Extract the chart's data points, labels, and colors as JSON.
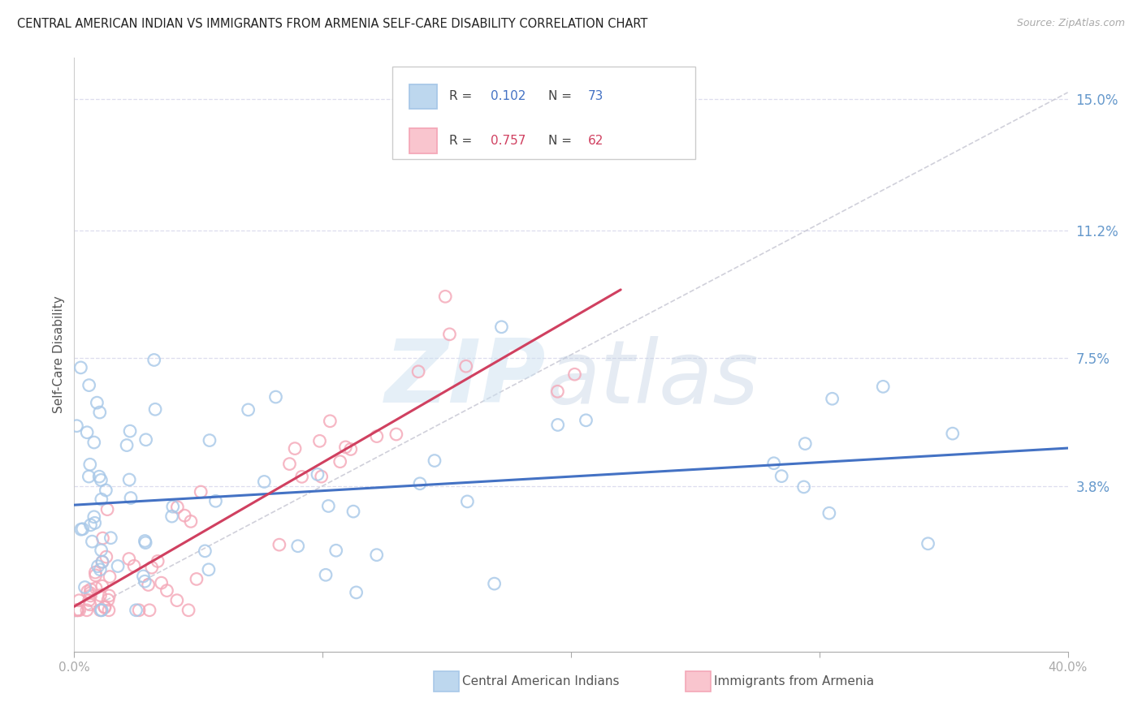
{
  "title": "CENTRAL AMERICAN INDIAN VS IMMIGRANTS FROM ARMENIA SELF-CARE DISABILITY CORRELATION CHART",
  "source": "Source: ZipAtlas.com",
  "ylabel": "Self-Care Disability",
  "color_blue": "#A8C8E8",
  "color_pink": "#F4A8B8",
  "color_blue_line": "#4472C4",
  "color_pink_line": "#D04060",
  "color_diag_line": "#C8C8D4",
  "color_ytick": "#6699CC",
  "color_grid": "#DDDDEE",
  "r_blue": 0.102,
  "n_blue": 73,
  "r_pink": 0.757,
  "n_pink": 62,
  "xlim": [
    0.0,
    0.4
  ],
  "ylim": [
    -0.01,
    0.162
  ],
  "yticks": [
    0.038,
    0.075,
    0.112,
    0.15
  ],
  "ytick_labels": [
    "3.8%",
    "7.5%",
    "11.2%",
    "15.0%"
  ],
  "legend_label1": "Central American Indians",
  "legend_label2": "Immigrants from Armenia",
  "blue_intercept": 0.03,
  "blue_slope": 0.018,
  "pink_intercept": 0.005,
  "pink_slope": 0.4
}
